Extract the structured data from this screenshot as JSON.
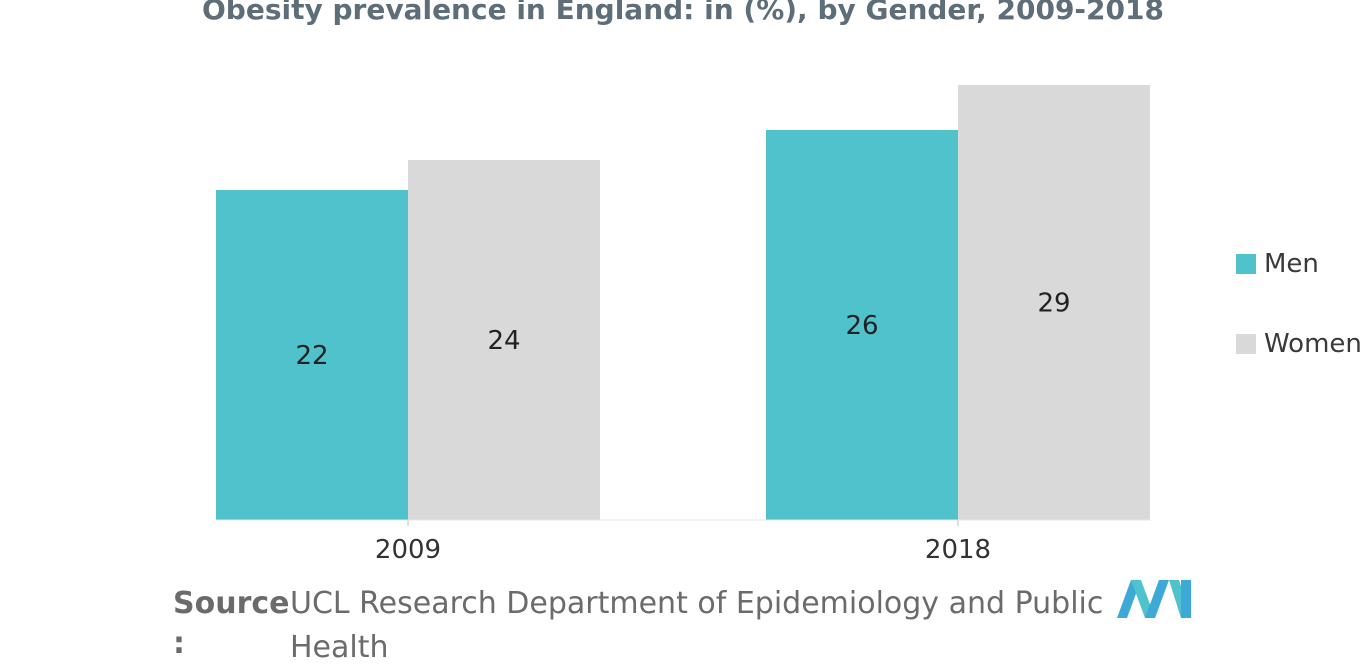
{
  "chart_data": {
    "type": "bar",
    "title": "Obesity prevalence in England: in (%), by Gender, 2009-2018",
    "categories": [
      "2009",
      "2018"
    ],
    "series": [
      {
        "name": "Men",
        "values": [
          22,
          26
        ],
        "color": "#4fc2cb"
      },
      {
        "name": "Women",
        "values": [
          24,
          29
        ],
        "color": "#d9d9d9"
      }
    ],
    "ylim": [
      0,
      29
    ],
    "grid": false,
    "legend": "right"
  },
  "source": {
    "label": "Source",
    "colon": ":",
    "text": "UCL Research Department of Epidemiology and Public Health"
  },
  "logo": {
    "icon": "mordor-logo-icon",
    "colors": [
      "#3da9d6",
      "#4fc2cb"
    ]
  }
}
